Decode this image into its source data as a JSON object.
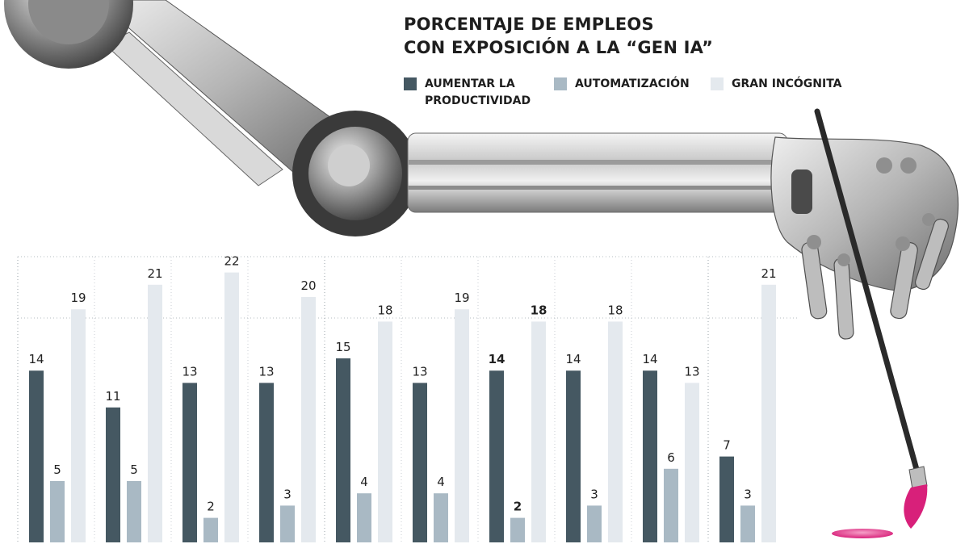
{
  "title": {
    "line1": "PORCENTAJE DE EMPLEOS",
    "line2": "CON EXPOSICIÓN A LA “GEN IA”"
  },
  "legend": [
    {
      "label": "AUMENTAR LA PRODUCTIVIDAD",
      "color": "#455862"
    },
    {
      "label": "AUTOMATIZACIÓN",
      "color": "#a9b9c4"
    },
    {
      "label": "GRAN INCÓGNITA",
      "color": "#e4e9ee"
    }
  ],
  "illustration": {
    "description_icon": "robot-arm-paintbrush-icon",
    "paint_color": "#e0408a"
  },
  "chart_data": {
    "type": "bar",
    "title": "PORCENTAJE DE EMPLEOS CON EXPOSICIÓN A LA “GEN IA”",
    "categories": [
      "",
      "",
      "",
      "",
      "",
      "",
      "",
      "",
      "",
      ""
    ],
    "series": [
      {
        "name": "AUMENTAR LA PRODUCTIVIDAD",
        "color": "#455862",
        "values": [
          14,
          11,
          13,
          13,
          15,
          13,
          14,
          14,
          14,
          7
        ]
      },
      {
        "name": "AUTOMATIZACIÓN",
        "color": "#a9b9c4",
        "values": [
          5,
          5,
          2,
          3,
          4,
          4,
          2,
          3,
          6,
          3
        ]
      },
      {
        "name": "GRAN INCÓGNITA",
        "color": "#e4e9ee",
        "values": [
          19,
          21,
          22,
          20,
          18,
          19,
          18,
          18,
          13,
          21
        ]
      }
    ],
    "highlight_group": 6,
    "ylim": [
      0,
      24
    ],
    "grid": true,
    "legend_position": "top"
  }
}
